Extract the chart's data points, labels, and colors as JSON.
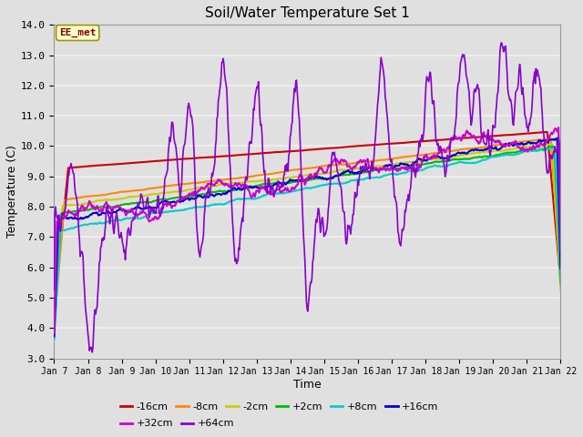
{
  "title": "Soil/Water Temperature Set 1",
  "xlabel": "Time",
  "ylabel": "Temperature (C)",
  "ylim": [
    3.0,
    14.0
  ],
  "yticks": [
    3.0,
    4.0,
    5.0,
    6.0,
    7.0,
    8.0,
    9.0,
    10.0,
    11.0,
    12.0,
    13.0,
    14.0
  ],
  "xtick_labels": [
    "Jan 7",
    "Jan 8",
    "Jan 9",
    "Jan 10",
    "Jan 11",
    "Jan 12",
    "Jan 13",
    "Jan 14",
    "Jan 15",
    "Jan 16",
    "Jan 17",
    "Jan 18",
    "Jan 19",
    "Jan 20",
    "Jan 21",
    "Jan 22"
  ],
  "bg_color": "#e0e0e0",
  "grid_color": "#f0f0f0",
  "annotation_text": "EE_met",
  "annotation_bg": "#ffffcc",
  "annotation_border": "#999900",
  "series_colors": {
    "-16cm": "#cc0000",
    "-8cm": "#ff8800",
    "-2cm": "#cccc00",
    "+2cm": "#00bb00",
    "+8cm": "#00cccc",
    "+16cm": "#0000cc",
    "+32cm": "#cc00cc",
    "+64cm": "#8800cc"
  },
  "legend_row1": [
    "-16cm",
    "-8cm",
    "-2cm",
    "+2cm",
    "+8cm",
    "+16cm"
  ],
  "legend_row2": [
    "+32cm",
    "+64cm"
  ]
}
